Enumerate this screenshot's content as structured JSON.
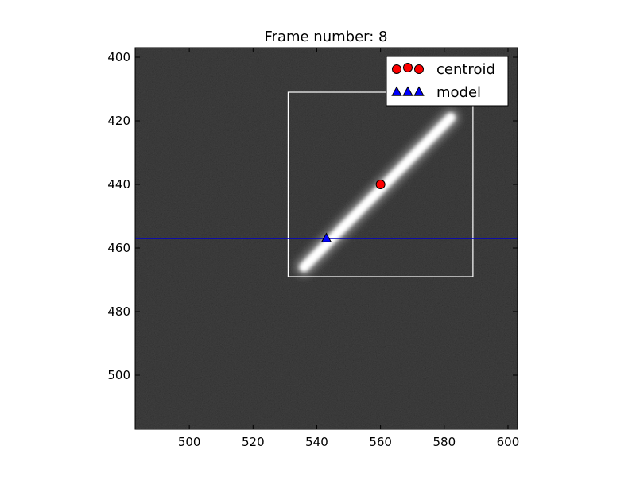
{
  "chart_data": {
    "type": "scatter",
    "title": "Frame number: 8",
    "xlabel": "",
    "ylabel": "",
    "xlim": [
      483,
      603
    ],
    "ylim": [
      517,
      397
    ],
    "y_inverted": true,
    "x_ticks": [
      500,
      520,
      540,
      560,
      580,
      600
    ],
    "y_ticks": [
      400,
      420,
      440,
      460,
      480,
      500
    ],
    "grid": false,
    "legend_position": "top-right",
    "background": {
      "description_type": "grayscale image",
      "streak": {
        "x": [
          536,
          582
        ],
        "y": [
          466,
          419
        ]
      }
    },
    "box": {
      "x": [
        531,
        589
      ],
      "y": [
        411,
        469
      ]
    },
    "hline": {
      "y": 457,
      "color": "#0000cc"
    },
    "series": [
      {
        "name": "centroid",
        "marker": "circle",
        "color": "#ff0000",
        "x": [
          560
        ],
        "y": [
          440
        ]
      },
      {
        "name": "model",
        "marker": "triangle",
        "color": "#0000ff",
        "x": [
          543
        ],
        "y": [
          457
        ]
      }
    ]
  }
}
